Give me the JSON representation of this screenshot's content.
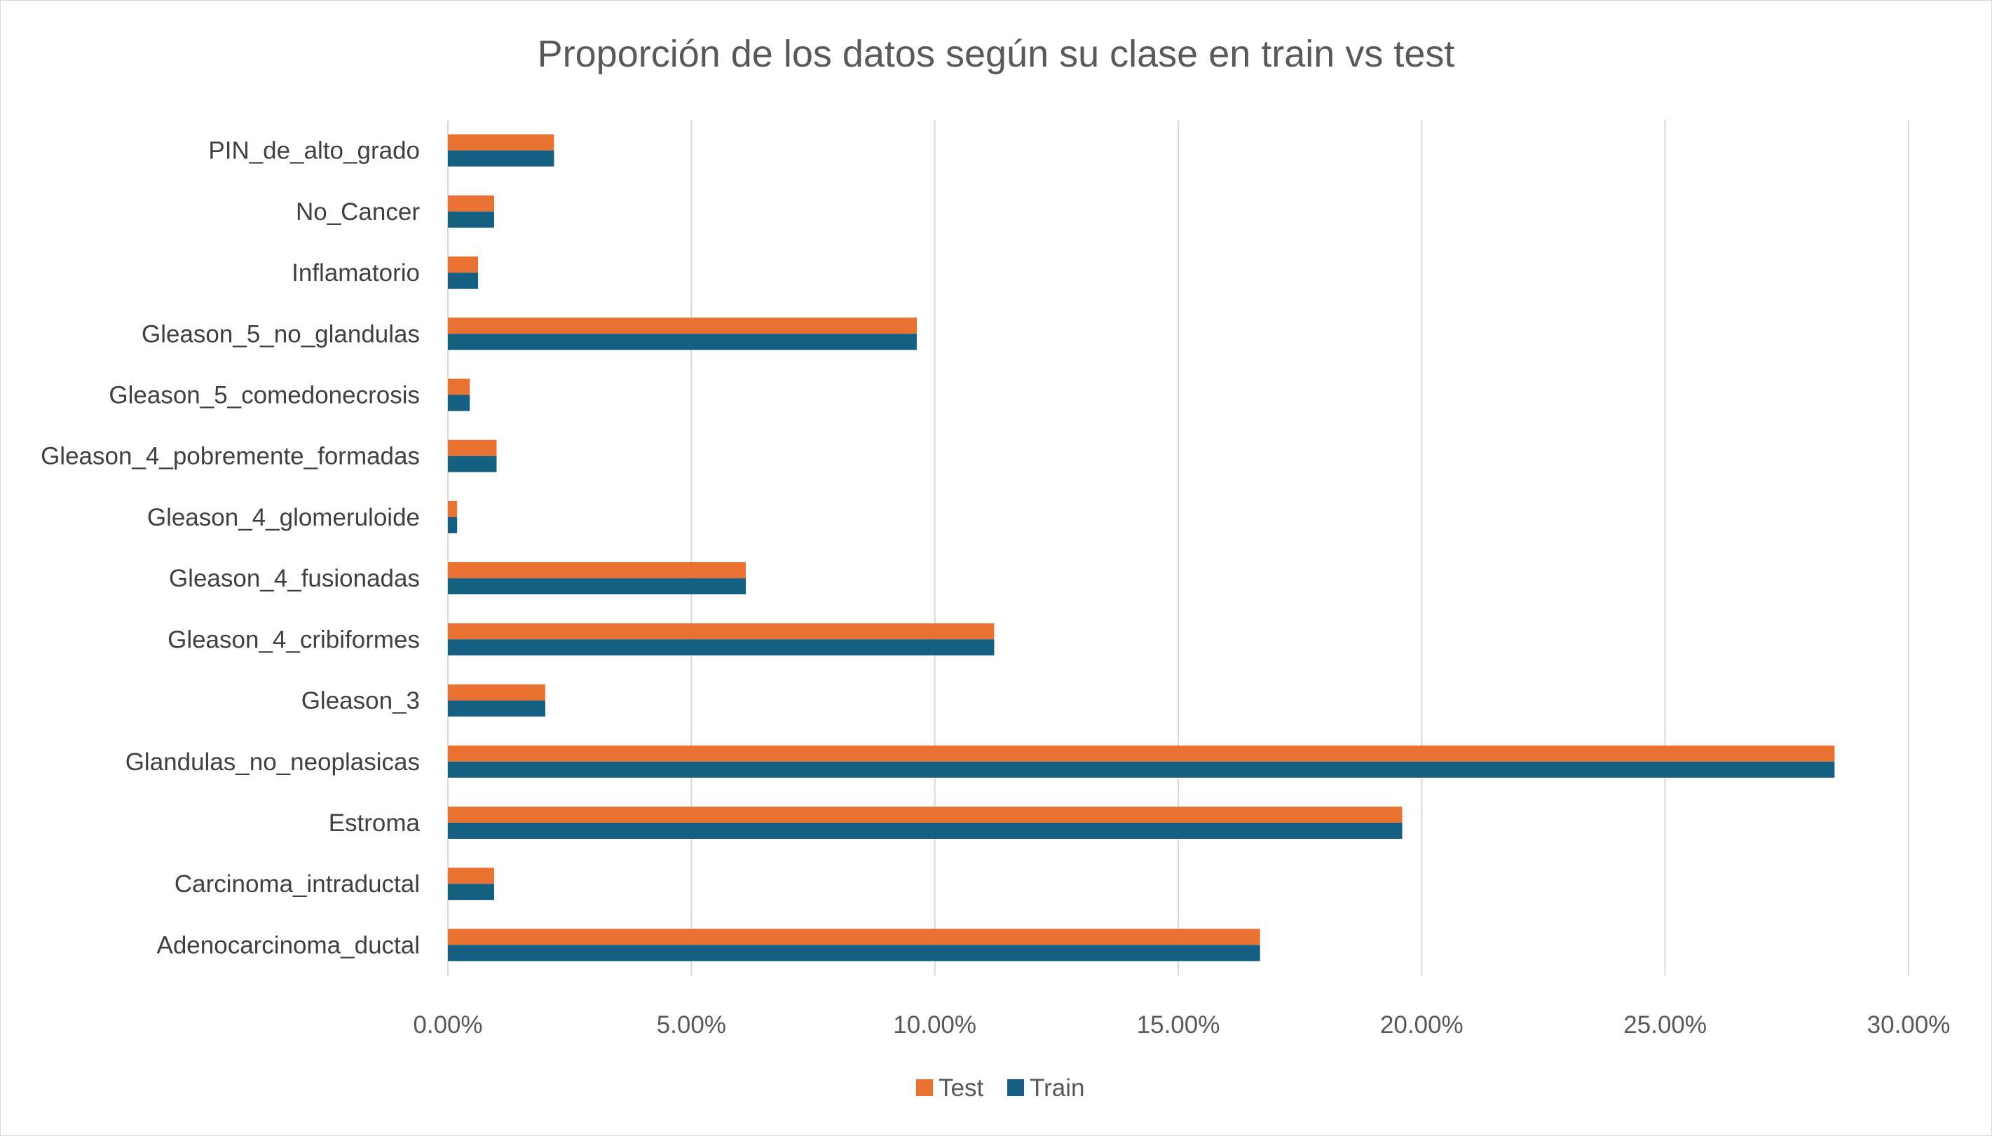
{
  "chart_data": {
    "type": "bar",
    "orientation": "horizontal",
    "title": "Proporción de los datos  según su clase en train vs test",
    "xlabel": "",
    "ylabel": "",
    "xlim": [
      0,
      0.3
    ],
    "x_ticks": [
      0,
      0.05,
      0.1,
      0.15,
      0.2,
      0.25,
      0.3
    ],
    "x_tick_labels": [
      "0.00%",
      "5.00%",
      "10.00%",
      "15.00%",
      "20.00%",
      "25.00%",
      "30.00%"
    ],
    "grid": "vertical",
    "legend": "bottom",
    "categories": [
      "PIN_de_alto_grado",
      "No_Cancer",
      "Inflamatorio",
      "Gleason_5_no_glandulas",
      "Gleason_5_comedonecrosis",
      "Gleason_4_pobremente_formadas",
      "Gleason_4_glomeruloide",
      "Gleason_4_fusionadas",
      "Gleason_4_cribiformes",
      "Gleason_3",
      "Glandulas_no_neoplasicas",
      "Estroma",
      "Carcinoma_intraductal",
      "Adenocarcinoma_ductal"
    ],
    "series": [
      {
        "name": "Test",
        "color": "#E97132",
        "values": [
          0.0218,
          0.0095,
          0.0062,
          0.0963,
          0.0045,
          0.01,
          0.0019,
          0.0612,
          0.1122,
          0.02,
          0.2848,
          0.196,
          0.0095,
          0.1668
        ]
      },
      {
        "name": "Train",
        "color": "#156082",
        "values": [
          0.0218,
          0.0095,
          0.0062,
          0.0963,
          0.0045,
          0.01,
          0.0019,
          0.0612,
          0.1122,
          0.02,
          0.2848,
          0.196,
          0.0095,
          0.1668
        ]
      }
    ]
  }
}
